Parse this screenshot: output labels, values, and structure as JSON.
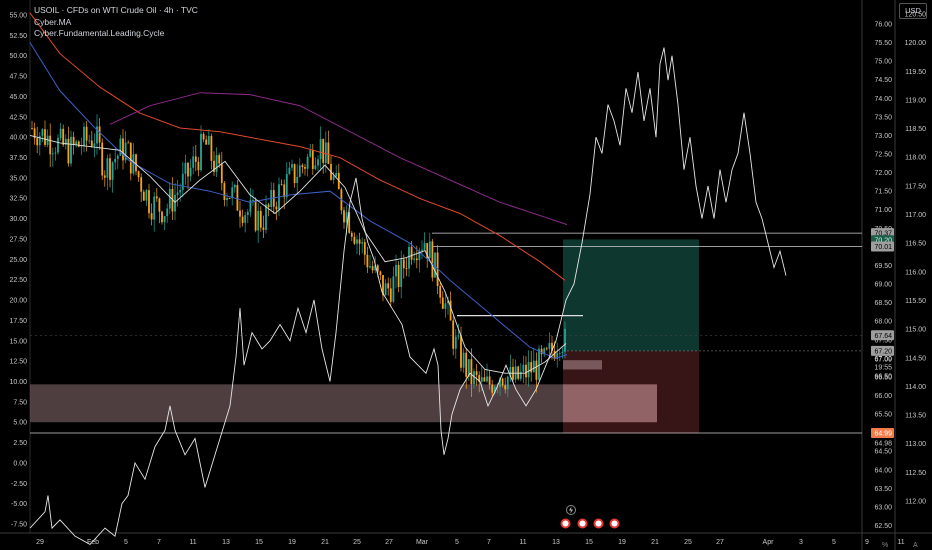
{
  "header": {
    "title": "USOIL · CFDs on WTI Crude Oil · 4h · TVC",
    "indicator1": "Cyber.MA",
    "indicator2": "Cyber.Fundamental.Leading.Cycle"
  },
  "currency": "USD",
  "colors": {
    "bg": "#000000",
    "candle_up": "#26a69a",
    "candle_down": "#f7a21b",
    "ma_fast": "#e0e0e0",
    "ma_mid": "#3d5fc4",
    "ma_slow": "#e0492d",
    "ma_long": "#8e2a8a",
    "cycle": "#e6e6e6",
    "target_zone": "#0f3a33",
    "stop_zone": "#3a1618",
    "support_zone": "#6a5356"
  },
  "chart_data": {
    "type": "candlestick",
    "left_axis": {
      "label": "Cyber.Fundamental.Leading.Cycle",
      "ticks": [
        "55.00",
        "52.50",
        "50.00",
        "47.50",
        "45.00",
        "42.50",
        "40.00",
        "37.50",
        "35.00",
        "32.50",
        "30.00",
        "27.50",
        "25.00",
        "22.50",
        "20.00",
        "17.50",
        "15.00",
        "12.50",
        "10.00",
        "7.50",
        "5.00",
        "2.50",
        "0.00",
        "-2.50",
        "-5.00",
        "-7.50"
      ],
      "range": [
        -8.5,
        56
      ]
    },
    "price_axis": {
      "ticks": [
        "76.00",
        "75.50",
        "75.00",
        "74.50",
        "74.00",
        "73.50",
        "73.00",
        "72.50",
        "72.00",
        "71.50",
        "71.00",
        "70.50",
        "70.00",
        "69.50",
        "69.00",
        "68.50",
        "68.00",
        "67.50",
        "67.00",
        "66.50",
        "66.00",
        "65.50",
        "65.00",
        "64.50",
        "64.00",
        "63.50",
        "63.00",
        "62.50"
      ],
      "range": [
        62.3,
        76.3
      ]
    },
    "usd_axis": {
      "ticks": [
        "120.50",
        "120.00",
        "119.50",
        "119.00",
        "118.50",
        "118.00",
        "117.50",
        "117.00",
        "116.50",
        "116.00",
        "115.50",
        "115.00",
        "114.50",
        "114.00",
        "113.50",
        "113.00",
        "112.50",
        "112.00"
      ],
      "range": [
        111.7,
        120.6
      ]
    },
    "x_axis": {
      "labels": [
        "29",
        "Feb",
        "5",
        "7",
        "11",
        "13",
        "15",
        "19",
        "21",
        "25",
        "27",
        "Mar",
        "5",
        "7",
        "11",
        "13",
        "15",
        "19",
        "21",
        "25",
        "27",
        "Apr",
        "3",
        "5",
        "9",
        "11"
      ]
    },
    "price_labels": [
      {
        "text": "70.37",
        "price": 70.37,
        "style": "gray"
      },
      {
        "text": "70.20",
        "price": 70.18,
        "style": "green"
      },
      {
        "text": "70.01",
        "price": 70.01,
        "style": "gray"
      },
      {
        "text": "67.64",
        "price": 67.62,
        "style": "gray"
      },
      {
        "text": "67.20",
        "price": 67.2,
        "style": "gray"
      },
      {
        "text": "67.09",
        "price": 66.98,
        "style": "plain"
      },
      {
        "text": "19:55",
        "price": 66.76,
        "style": "plain"
      },
      {
        "text": "66.50",
        "price": 66.52,
        "style": "plain"
      },
      {
        "text": "64.99",
        "price": 64.99,
        "style": "orange"
      },
      {
        "text": "64.98",
        "price": 64.72,
        "style": "plain"
      }
    ],
    "levels": [
      {
        "name": "resistance-upper",
        "price": 70.37
      },
      {
        "name": "resistance-lower",
        "price": 70.01
      },
      {
        "name": "support-line",
        "price": 64.99
      },
      {
        "name": "entry-line",
        "price": 67.2
      },
      {
        "name": "recent-high",
        "price": 68.15
      }
    ],
    "zones": [
      {
        "name": "target-zone",
        "from": 67.2,
        "to": 70.2
      },
      {
        "name": "stop-zone",
        "from": 64.99,
        "to": 67.2
      },
      {
        "name": "support-zone",
        "from": 65.28,
        "to": 66.3
      },
      {
        "name": "projected-support",
        "from": 65.28,
        "to": 66.3
      },
      {
        "name": "small-zone",
        "from": 66.7,
        "to": 66.95
      }
    ],
    "grid": false,
    "legend": "top-left"
  }
}
